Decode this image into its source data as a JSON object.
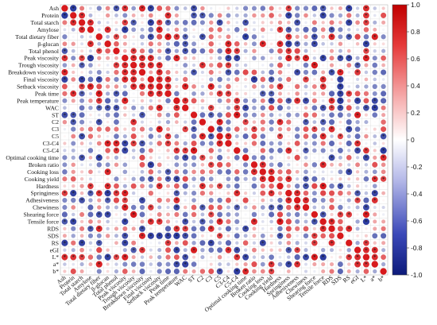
{
  "chart_data": {
    "type": "heatmap",
    "title": "",
    "xlabel": "",
    "ylabel": "",
    "variables": [
      "Ash",
      "Protein",
      "Total starch",
      "Amylose",
      "Total dietary fiber",
      "β-glucan",
      "Total phenol",
      "Peak viscosity",
      "Trough viscosity",
      "Breakdown viscosity",
      "Final viscosity",
      "Setback viscosity",
      "Peak time",
      "Peak temperature",
      "WAC",
      "ST",
      "C2",
      "C3",
      "C5",
      "C3-C4",
      "C5-C4",
      "Optimal cooking time",
      "Broken ratio",
      "Cooking loss",
      "Cooking yield",
      "Hardness",
      "Springiness",
      "Adhesiveness",
      "Chewiness",
      "Shearing force",
      "Tensile force",
      "RDS",
      "SDS",
      "RS",
      "eGI",
      "L*",
      "a*",
      "b*"
    ],
    "x_labels": [
      "Ash",
      "Protein",
      "Total starch",
      "Amylose",
      "Total dietary fiber",
      "β-glucan",
      "Total phenol",
      "Peak viscosity",
      "Trough viscosity",
      "Breakdown viscosity",
      "Final viscosity",
      "Setback viscosity",
      "Peak time",
      "Peak temperature",
      "WAC",
      "ST",
      "C2",
      "C3",
      "C5",
      "C3-C4",
      "C5-C4",
      "Optimal cooking time",
      "Broken ratio",
      "Cooking loss",
      "Cooking yield",
      "Hardness",
      "Springiness",
      "Adhesiveness",
      "Chewiness",
      "Shearing force",
      "Tensile force",
      "RDS",
      "SDS",
      "RS",
      "eGI",
      "L*",
      "a*",
      "b*"
    ],
    "colorbar": {
      "min": -1.0,
      "max": 1.0,
      "ticks": [
        "1.0",
        "0.8",
        "0.6",
        "0.4",
        "0.2",
        "0",
        "-0.2",
        "-0.4",
        "-0.6",
        "-0.8",
        "-1.0"
      ]
    },
    "colors": {
      "positive": "#d7191c",
      "negative": "#2b3a9e",
      "neutral": "#ffffff",
      "grid": "#d9d9d9"
    },
    "significance_marker": "*",
    "seed": 20240611
  }
}
